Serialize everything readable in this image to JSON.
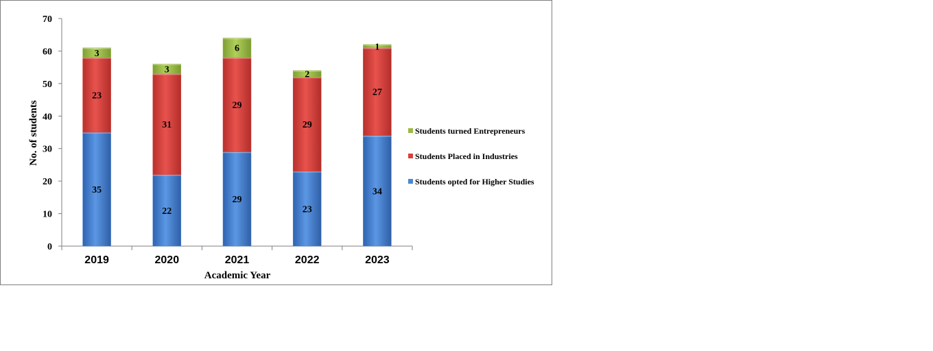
{
  "chart_data": {
    "type": "bar",
    "stacked": true,
    "title": "",
    "xlabel": "Academic Year",
    "ylabel": "No. of students",
    "categories": [
      "2019",
      "2020",
      "2021",
      "2022",
      "2023"
    ],
    "ylim": [
      0,
      70
    ],
    "yticks": [
      0,
      10,
      20,
      30,
      40,
      50,
      60,
      70
    ],
    "series": [
      {
        "name": "Students opted for Higher Studies",
        "values": [
          35,
          22,
          29,
          23,
          34
        ],
        "color": "#4a86d6"
      },
      {
        "name": "Students Placed in Industries",
        "values": [
          23,
          31,
          29,
          29,
          27
        ],
        "color": "#d9403c"
      },
      {
        "name": "Students turned Entrepreneurs",
        "values": [
          3,
          3,
          6,
          2,
          1
        ],
        "color": "#9bbb45"
      }
    ],
    "legend_order": [
      "Students turned Entrepreneurs",
      "Students Placed in Industries",
      "Students opted for Higher Studies"
    ],
    "legend_position": "right",
    "grid": false
  }
}
